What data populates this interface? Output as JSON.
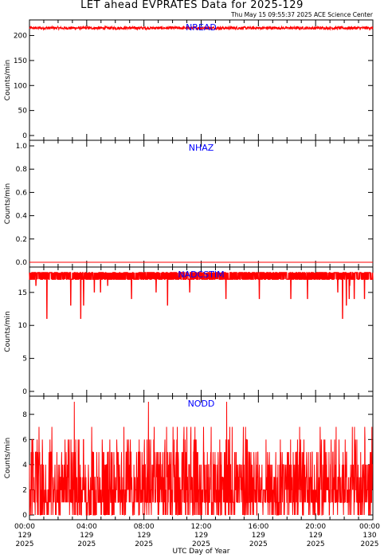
{
  "title": "LET ahead EVPRATES Data for 2025-129",
  "timestamp": "Thu May 15 09:55:37 2025 ACE Science Center",
  "chart_data": {
    "type": "line",
    "xlabel": "UTC Day of Year",
    "color": "#ff0000",
    "label_color": "#0000ff",
    "x_ticks": [
      {
        "time": "00:00",
        "doy": "129",
        "year": "2025"
      },
      {
        "time": "04:00",
        "doy": "129",
        "year": "2025"
      },
      {
        "time": "08:00",
        "doy": "129",
        "year": "2025"
      },
      {
        "time": "12:00",
        "doy": "129",
        "year": "2025"
      },
      {
        "time": "16:00",
        "doy": "129",
        "year": "2025"
      },
      {
        "time": "20:00",
        "doy": "129",
        "year": "2025"
      },
      {
        "time": "00:00",
        "doy": "130",
        "year": "2025"
      }
    ],
    "xlim_hours": [
      0,
      24
    ],
    "panels": [
      {
        "name": "NREAD",
        "ylabel": "Counts/min",
        "ylim": [
          0,
          220
        ],
        "yticks": [
          0,
          50,
          100,
          150,
          200
        ],
        "typical": 215,
        "min": 210,
        "max": 221
      },
      {
        "name": "NHAZ",
        "ylabel": "Counts/min",
        "ylim": [
          0,
          1
        ],
        "yticks": [
          0.0,
          0.2,
          0.4,
          0.6,
          0.8,
          1.0
        ],
        "typical": 0,
        "min": 0,
        "max": 0
      },
      {
        "name": "NADCSTIM",
        "ylabel": "Counts/min",
        "ylim": [
          0,
          18
        ],
        "yticks": [
          0,
          5,
          10,
          15
        ],
        "typical": 17.5,
        "min": 11,
        "max": 18
      },
      {
        "name": "NODD",
        "ylabel": "Counts/min",
        "ylim": [
          0,
          9
        ],
        "yticks": [
          0,
          2,
          4,
          6,
          8
        ],
        "typical": 2.5,
        "min": 0,
        "max": 9
      }
    ]
  }
}
